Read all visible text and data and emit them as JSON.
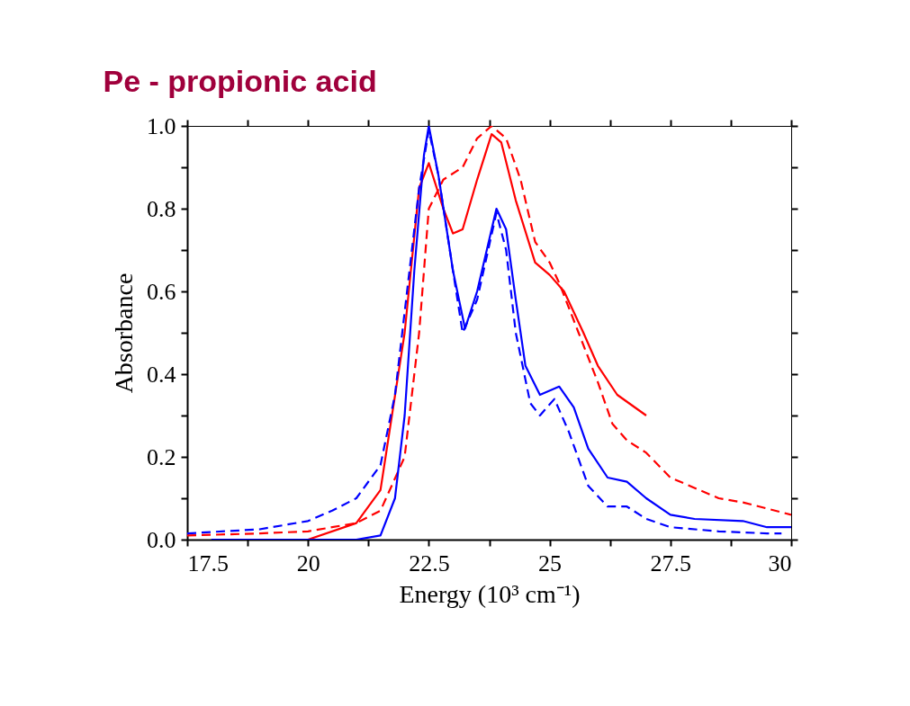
{
  "chart_data": {
    "type": "line",
    "title": "Pe - propionic acid",
    "xlabel": "Energy (10³ cm⁻¹)",
    "ylabel": "Absorbance",
    "xlim": [
      17.5,
      30
    ],
    "ylim": [
      0,
      1
    ],
    "xticks": [
      17.5,
      {
        "value": 18.75,
        "label": null
      },
      20,
      {
        "value": 21.25,
        "label": null
      },
      22.5,
      {
        "value": 23.75,
        "label": null
      },
      25,
      {
        "value": 26.25,
        "label": null
      },
      27.5,
      {
        "value": 28.75,
        "label": null
      },
      30
    ],
    "yticks": [
      {
        "value": 0,
        "label": "0.0"
      },
      {
        "value": 0.1,
        "label": null
      },
      0.2,
      {
        "value": 0.3,
        "label": null
      },
      0.4,
      {
        "value": 0.5,
        "label": null
      },
      0.6,
      {
        "value": 0.7,
        "label": null
      },
      0.8,
      {
        "value": 0.9,
        "label": null
      },
      {
        "value": 1,
        "label": "1.0"
      }
    ],
    "grid": false,
    "marker": "none",
    "series": [
      {
        "color": "#ff0000",
        "line_style": "solid",
        "x": [
          19.0,
          20.0,
          21.0,
          21.5,
          22.0,
          22.3,
          22.5,
          22.8,
          23.0,
          23.2,
          23.5,
          23.8,
          24.0,
          24.3,
          24.7,
          25.0,
          25.3,
          25.7,
          26.0,
          26.4,
          27.0
        ],
        "values": [
          0.0,
          0.0,
          0.04,
          0.12,
          0.5,
          0.85,
          0.91,
          0.8,
          0.74,
          0.75,
          0.87,
          0.98,
          0.96,
          0.82,
          0.67,
          0.64,
          0.6,
          0.5,
          0.42,
          0.35,
          0.3
        ]
      },
      {
        "color": "#ff0000",
        "line_style": "dashed",
        "x": [
          17.5,
          19.0,
          20.0,
          21.0,
          21.5,
          22.0,
          22.3,
          22.5,
          22.8,
          23.2,
          23.5,
          23.8,
          24.1,
          24.4,
          24.7,
          25.0,
          25.2,
          25.6,
          26.0,
          26.3,
          26.6,
          27.0,
          27.5,
          28.5,
          29.0,
          30.0
        ],
        "values": [
          0.01,
          0.015,
          0.02,
          0.04,
          0.07,
          0.2,
          0.5,
          0.8,
          0.87,
          0.9,
          0.97,
          1.0,
          0.97,
          0.87,
          0.72,
          0.67,
          0.62,
          0.5,
          0.38,
          0.28,
          0.24,
          0.21,
          0.15,
          0.1,
          0.09,
          0.06
        ]
      },
      {
        "color": "#0000ff",
        "line_style": "solid",
        "x": [
          18.0,
          21.0,
          21.5,
          21.8,
          22.0,
          22.2,
          22.4,
          22.5,
          22.7,
          23.0,
          23.25,
          23.5,
          23.9,
          24.1,
          24.3,
          24.5,
          24.8,
          25.2,
          25.5,
          25.8,
          26.2,
          26.6,
          27.0,
          27.5,
          28.0,
          29.0,
          29.5,
          30.0
        ],
        "values": [
          0.0,
          0.0,
          0.01,
          0.1,
          0.3,
          0.65,
          0.93,
          1.0,
          0.88,
          0.65,
          0.51,
          0.6,
          0.8,
          0.75,
          0.58,
          0.42,
          0.35,
          0.37,
          0.32,
          0.22,
          0.15,
          0.14,
          0.1,
          0.06,
          0.05,
          0.045,
          0.03,
          0.03
        ]
      },
      {
        "color": "#0000ff",
        "line_style": "dashed",
        "x": [
          17.5,
          19.0,
          20.0,
          20.5,
          21.0,
          21.5,
          21.8,
          22.0,
          22.3,
          22.5,
          22.7,
          23.0,
          23.2,
          23.5,
          23.9,
          24.1,
          24.3,
          24.6,
          24.8,
          25.1,
          25.4,
          25.8,
          26.2,
          26.6,
          27.0,
          27.5,
          28.5,
          29.5,
          29.8
        ],
        "values": [
          0.015,
          0.025,
          0.045,
          0.07,
          0.1,
          0.18,
          0.35,
          0.55,
          0.85,
          0.99,
          0.88,
          0.65,
          0.5,
          0.58,
          0.79,
          0.7,
          0.5,
          0.33,
          0.3,
          0.34,
          0.26,
          0.13,
          0.08,
          0.08,
          0.05,
          0.03,
          0.02,
          0.015,
          0.015
        ]
      }
    ]
  }
}
